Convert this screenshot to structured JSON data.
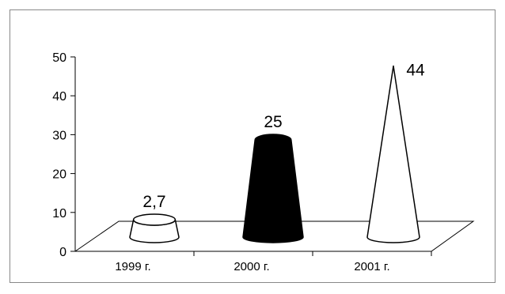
{
  "chart_data": {
    "type": "bar",
    "bar_shape": "cone",
    "three_d": true,
    "categories": [
      "1999 г.",
      "2000 г.",
      "2001 г."
    ],
    "values": [
      2.7,
      25,
      44
    ],
    "data_labels": [
      "2,7",
      "25",
      "44"
    ],
    "fill_colors": [
      "#ffffff",
      "#000000",
      "#ffffff"
    ],
    "title": "",
    "xlabel": "",
    "ylabel": "",
    "ylim": [
      0,
      50
    ],
    "yticks": [
      0,
      10,
      20,
      30,
      40,
      50
    ],
    "ytick_labels": [
      "0",
      "10",
      "20",
      "30",
      "40",
      "50"
    ],
    "grid": false,
    "legend": "none"
  }
}
